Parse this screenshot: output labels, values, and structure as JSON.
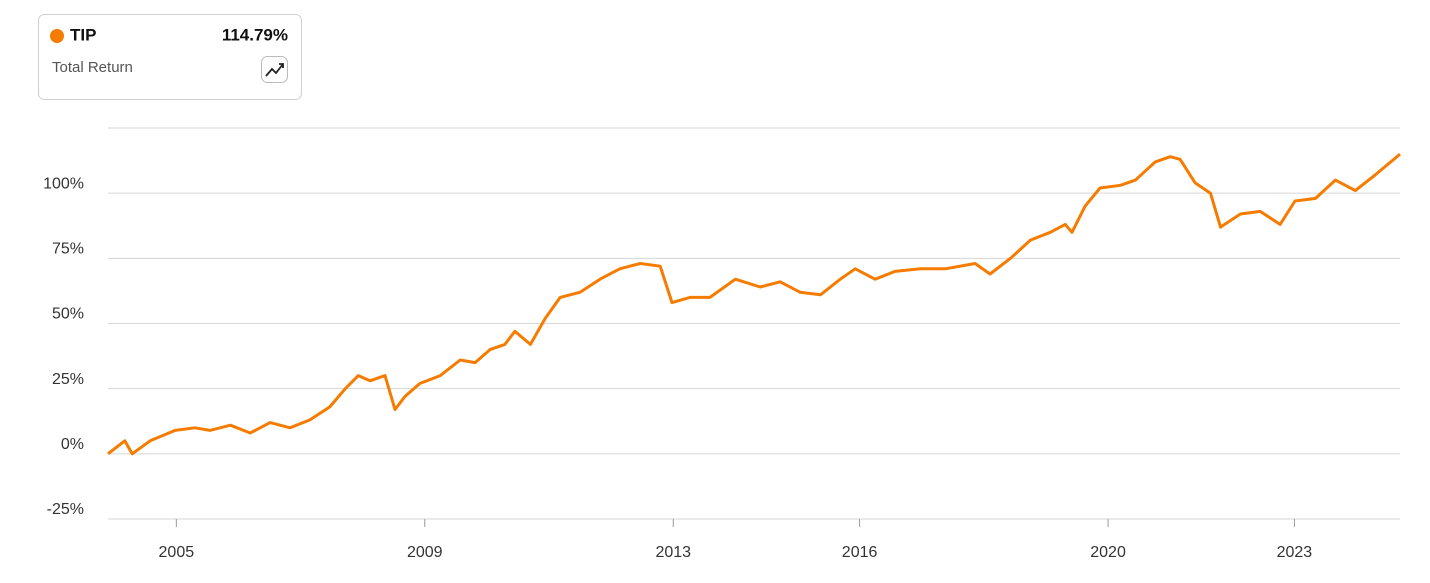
{
  "chart_data": {
    "type": "line",
    "metric": "Total Return",
    "series": [
      {
        "name": "TIP",
        "color": "#f57c00",
        "total_return": {
          "value": 114.79,
          "label": "114.79%"
        },
        "values": [
          0,
          5,
          0,
          5,
          9,
          10,
          9,
          11,
          8,
          12,
          10,
          13,
          18,
          25,
          30,
          28,
          30,
          17,
          22,
          27,
          30,
          36,
          35,
          40,
          42,
          47,
          42,
          52,
          60,
          62,
          67,
          71,
          73,
          72,
          58,
          60,
          60,
          67,
          64,
          66,
          62,
          61,
          67,
          71,
          67,
          70,
          71,
          71,
          73,
          69,
          75,
          82,
          85,
          88,
          85,
          95,
          102,
          103,
          105,
          112,
          114,
          113,
          104,
          100,
          87,
          92,
          93,
          88,
          97,
          98,
          105,
          101,
          107,
          115
        ]
      }
    ],
    "x": [
      2003.9,
      2004.17,
      2004.29,
      2004.58,
      2004.98,
      2005.3,
      2005.54,
      2005.87,
      2006.19,
      2006.51,
      2006.83,
      2007.15,
      2007.47,
      2007.72,
      2007.93,
      2008.12,
      2008.36,
      2008.52,
      2008.68,
      2008.92,
      2009.25,
      2009.57,
      2009.81,
      2010.05,
      2010.29,
      2010.45,
      2010.7,
      2010.94,
      2011.18,
      2011.5,
      2011.82,
      2012.14,
      2012.47,
      2012.79,
      2012.98,
      2013.27,
      2013.59,
      2014.0,
      2014.4,
      2014.72,
      2015.04,
      2015.37,
      2015.69,
      2015.93,
      2016.25,
      2016.57,
      2016.98,
      2017.38,
      2017.86,
      2018.1,
      2018.43,
      2018.75,
      2019.07,
      2019.31,
      2019.42,
      2019.63,
      2019.87,
      2020.2,
      2020.44,
      2020.76,
      2021.0,
      2021.16,
      2021.4,
      2021.65,
      2021.81,
      2022.13,
      2022.45,
      2022.77,
      2023.01,
      2023.34,
      2023.66,
      2023.98,
      2024.3,
      2024.7
    ],
    "xlim": [
      2003.9,
      2024.7
    ],
    "xticks": [
      2005,
      2009,
      2013,
      2016,
      2020,
      2023
    ],
    "ylim": [
      -25,
      125
    ],
    "yticks": [
      {
        "value": -25,
        "label": "-25%"
      },
      {
        "value": 0,
        "label": "0%"
      },
      {
        "value": 25,
        "label": "25%"
      },
      {
        "value": 50,
        "label": "50%"
      },
      {
        "value": 75,
        "label": "75%"
      },
      {
        "value": 100,
        "label": "100%"
      }
    ],
    "grid": true
  }
}
